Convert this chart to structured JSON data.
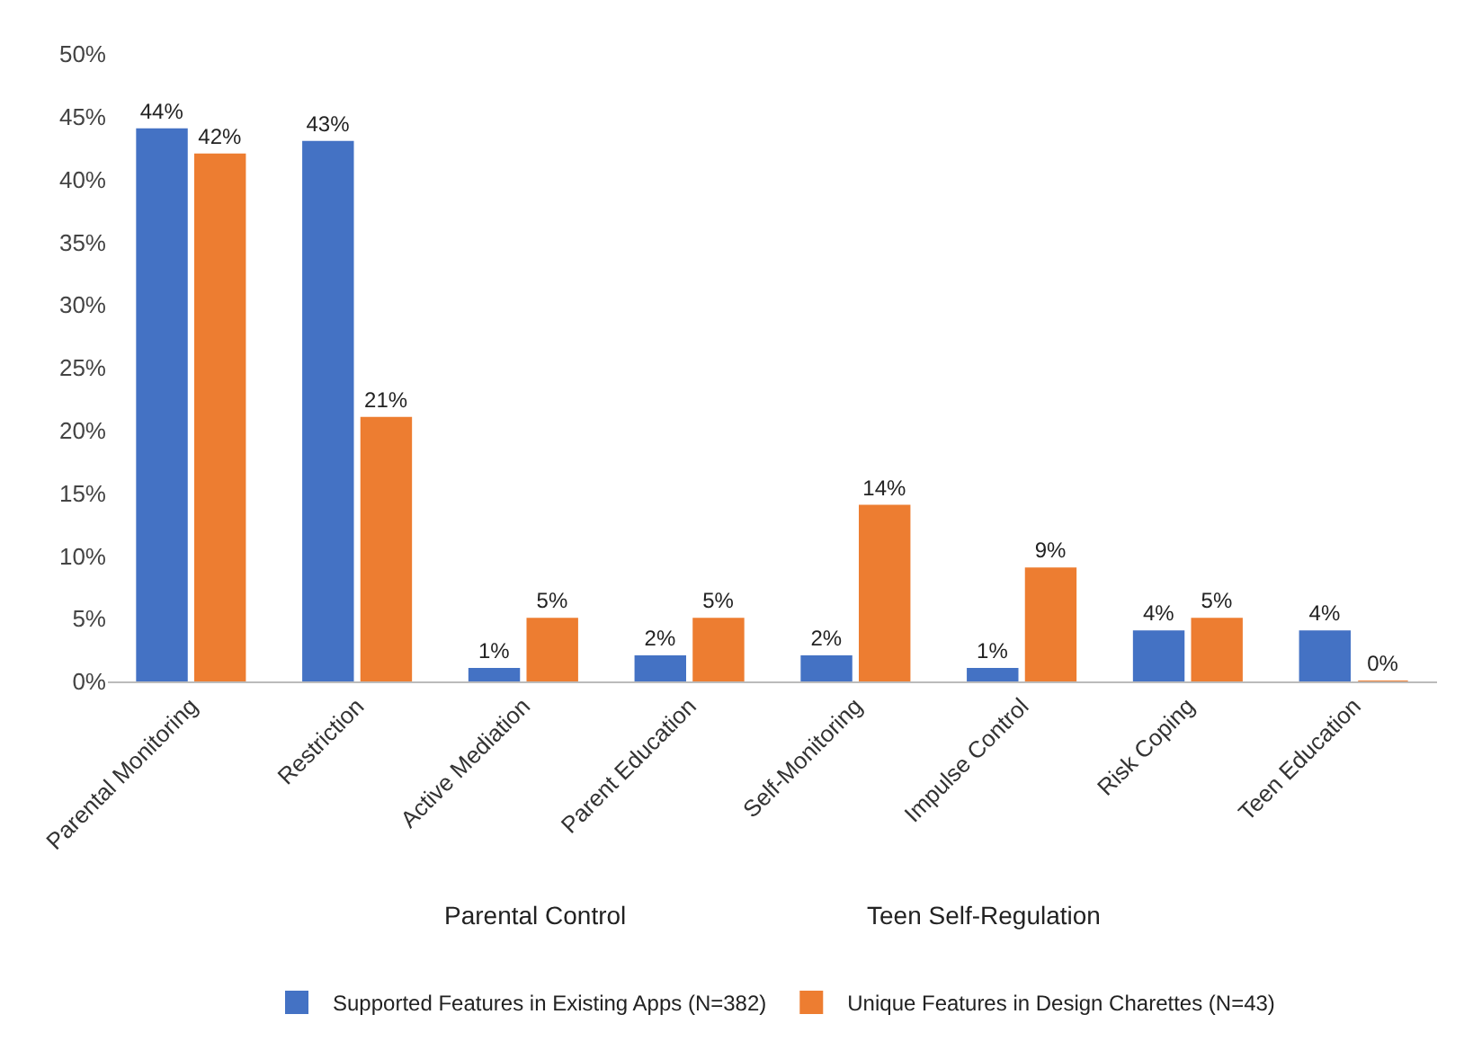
{
  "chart_data": {
    "type": "bar",
    "categories": [
      "Parental Monitoring",
      "Restriction",
      "Active Mediation",
      "Parent Education",
      "Self-Monitoring",
      "Impulse Control",
      "Risk Coping",
      "Teen Education"
    ],
    "series": [
      {
        "name": "Supported Features in Existing Apps (N=382)",
        "color": "#4472c4",
        "values": [
          44,
          43,
          1,
          2,
          2,
          1,
          4,
          4
        ],
        "value_labels": [
          "44%",
          "43%",
          "1%",
          "2%",
          "2%",
          "1%",
          "4%",
          "4%"
        ]
      },
      {
        "name": "Unique Features in Design Charettes (N=43)",
        "color": "#ed7d31",
        "values": [
          42,
          21,
          5,
          5,
          14,
          9,
          5,
          0
        ],
        "value_labels": [
          "42%",
          "21%",
          "5%",
          "5%",
          "14%",
          "9%",
          "5%",
          "0%"
        ]
      }
    ],
    "ylim": [
      0,
      50
    ],
    "yticks": [
      {
        "value": 0,
        "label": "0%"
      },
      {
        "value": 5,
        "label": "5%"
      },
      {
        "value": 10,
        "label": "10%"
      },
      {
        "value": 15,
        "label": "15%"
      },
      {
        "value": 20,
        "label": "20%"
      },
      {
        "value": 25,
        "label": "25%"
      },
      {
        "value": 30,
        "label": "30%"
      },
      {
        "value": 35,
        "label": "35%"
      },
      {
        "value": 40,
        "label": "40%"
      },
      {
        "value": 45,
        "label": "45%"
      },
      {
        "value": 50,
        "label": "50%"
      }
    ],
    "annotations": [
      "Parental Control",
      "Teen Self-Regulation"
    ],
    "legend": "bottom"
  }
}
